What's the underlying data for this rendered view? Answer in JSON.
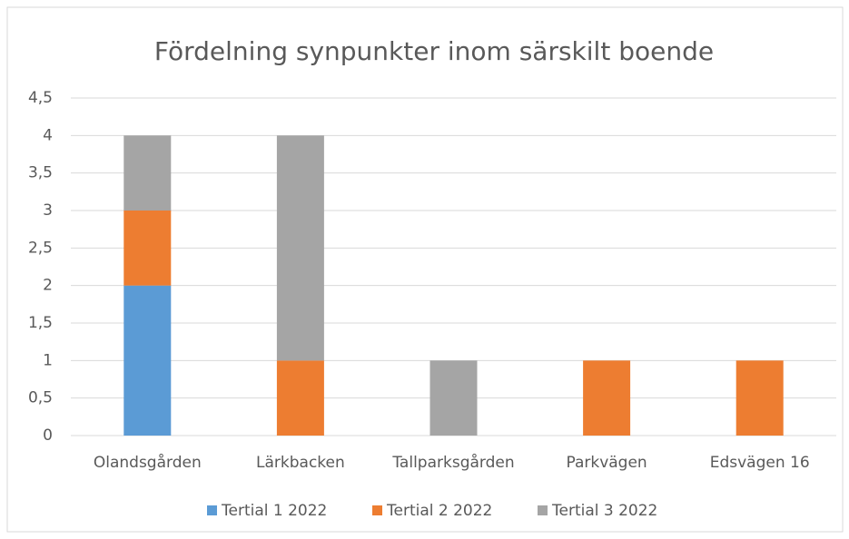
{
  "chart_data": {
    "type": "stacked_bar",
    "title": "Fördelning synpunkter inom särskilt boende",
    "categories": [
      "Olandsgården",
      "Lärkbacken",
      "Tallparksgården",
      "Parkvägen",
      "Edsvägen 16"
    ],
    "series": [
      {
        "name": "Tertial 1 2022",
        "color": "#5b9bd5",
        "values": [
          2,
          0,
          0,
          0,
          0
        ]
      },
      {
        "name": "Tertial 2 2022",
        "color": "#ed7d31",
        "values": [
          1,
          1,
          0,
          1,
          1
        ]
      },
      {
        "name": "Tertial 3 2022",
        "color": "#a5a5a5",
        "values": [
          1,
          3,
          1,
          0,
          0
        ]
      }
    ],
    "ylim": [
      0,
      4.5
    ],
    "yticks": [
      0,
      {
        "value": 0.5,
        "label": "0,5"
      },
      1,
      {
        "value": 1.5,
        "label": "1,5"
      },
      2,
      {
        "value": 2.5,
        "label": "2,5"
      },
      3,
      {
        "value": 3.5,
        "label": "3,5"
      },
      4,
      {
        "value": 4.5,
        "label": "4,5"
      }
    ],
    "grid": true,
    "legend": "bottom"
  }
}
